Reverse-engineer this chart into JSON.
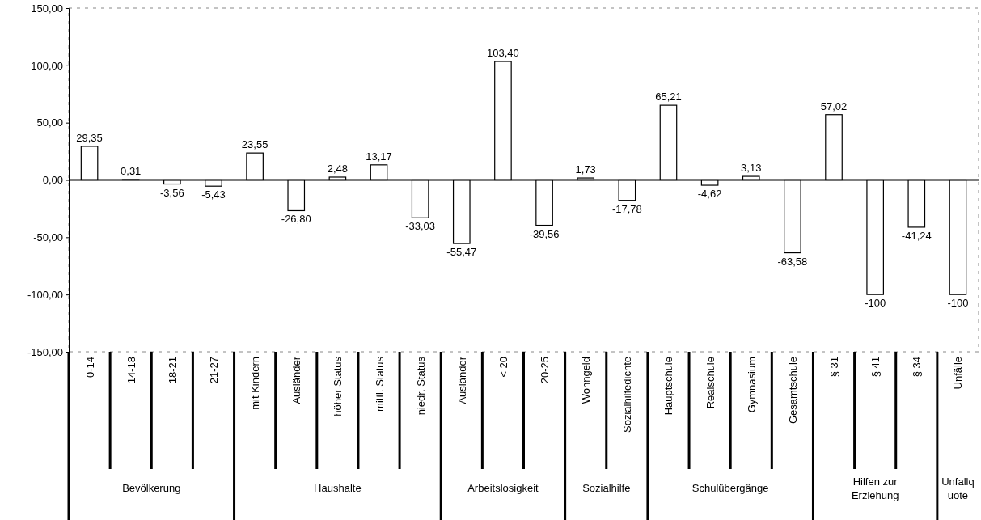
{
  "chart_data": {
    "type": "bar",
    "categories": [
      "0-14",
      "14-18",
      "18-21",
      "21-27",
      "mit Kindern",
      "Ausländer",
      "höher Status",
      "mittl. Status",
      "niedr. Status",
      "Ausländer",
      "< 20",
      "20-25",
      "Wohngeld",
      "Sozialhilfedichte",
      "Hauptschule",
      "Realschule",
      "Gymnasium",
      "Gesamtschule",
      "§ 31",
      "§ 41",
      "§ 34",
      "Unfälle"
    ],
    "values": [
      29.35,
      0.31,
      -3.56,
      -5.43,
      23.55,
      -26.8,
      2.48,
      13.17,
      -33.03,
      -55.47,
      103.4,
      -39.56,
      1.73,
      -17.78,
      65.21,
      -4.62,
      3.13,
      -63.58,
      57.02,
      -100,
      -41.24,
      -100
    ],
    "value_labels": [
      "29,35",
      "0,31",
      "-3,56",
      "-5,43",
      "23,55",
      "-26,80",
      "2,48",
      "13,17",
      "-33,03",
      "-55,47",
      "103,40",
      "-39,56",
      "1,73",
      "-17,78",
      "65,21",
      "-4,62",
      "3,13",
      "-63,58",
      "57,02",
      "-100",
      "-41,24",
      "-100"
    ],
    "color": "#ffffff",
    "ylim": [
      -150,
      150
    ],
    "yticks": [
      {
        "value": 150,
        "label": "150,00"
      },
      {
        "value": 100,
        "label": "100,00"
      },
      {
        "value": 50,
        "label": "50,00"
      },
      {
        "value": 0,
        "label": "0,00"
      },
      {
        "value": -50,
        "label": "-50,00"
      },
      {
        "value": -100,
        "label": "-100,00"
      },
      {
        "value": -150,
        "label": "-150,00"
      }
    ],
    "annotations": [
      "Bevölkerung",
      "Haushalte",
      "Arbeitslosigkeit",
      "Sozialhilfe",
      "Schulübergänge",
      "Hilfen zur Erziehung",
      "Unfallquote"
    ]
  }
}
